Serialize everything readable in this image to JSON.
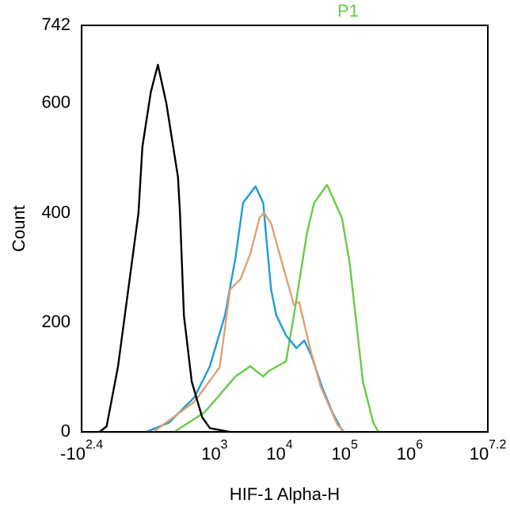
{
  "chart_data": {
    "type": "line",
    "title": "P1",
    "xlabel": "HIF-1 Alpha-H",
    "ylabel": "Count",
    "legend": false,
    "grid": false,
    "marker": "none",
    "line_style": "solid",
    "log": "x",
    "xlim": [
      9.1,
      15850000
    ],
    "xticks": [
      {
        "value": 9.1,
        "label": "-10$^{2.4}$"
      },
      {
        "value": 1000,
        "label": "10$^{3}$"
      },
      {
        "value": 10000,
        "label": "10$^{4}$"
      },
      {
        "value": 100000,
        "label": "10$^{5}$"
      },
      {
        "value": 1000000,
        "label": "10$^{6}$"
      },
      {
        "value": 15850000,
        "label": "10$^{7.2}$"
      }
    ],
    "ylim": [
      0,
      742
    ],
    "yticks": [
      0,
      200,
      400,
      600,
      742
    ],
    "series": [
      {
        "color": "#000000",
        "x": [
          17,
          22,
          33,
          68,
          78,
          105,
          135,
          182,
          275,
          295,
          339,
          447,
          646,
          851,
          1738
        ],
        "values": [
          0,
          10,
          120,
          400,
          520,
          620,
          670,
          600,
          465,
          400,
          213,
          92,
          27,
          7,
          0
        ]
      },
      {
        "color": "#e0a070",
        "x": [
          115,
          490,
          1200,
          1740,
          2510,
          3550,
          4900,
          5750,
          7410,
          10500,
          16600,
          20000,
          28800,
          42700,
          77600,
          100000
        ],
        "values": [
          0,
          55,
          118,
          260,
          279,
          325,
          390,
          400,
          381,
          316,
          232,
          237,
          157,
          83,
          13,
          0
        ]
      },
      {
        "color": "#1f9ad6",
        "x": [
          89,
          200,
          490,
          851,
          1450,
          2090,
          2750,
          4270,
          5620,
          6170,
          7410,
          8910,
          12600,
          18200,
          24000,
          30900,
          44700,
          64600,
          91200
        ],
        "values": [
          0,
          17,
          63,
          120,
          213,
          316,
          418,
          448,
          418,
          362,
          260,
          213,
          176,
          153,
          167,
          139,
          83,
          36,
          3
        ]
      },
      {
        "color": "#66cc44",
        "x": [
          240,
          708,
          2090,
          3550,
          5620,
          6760,
          12600,
          16600,
          26300,
          33900,
          53700,
          91200,
          120000,
          191000,
          275000,
          331000
        ],
        "values": [
          0,
          36,
          101,
          120,
          101,
          111,
          129,
          213,
          362,
          418,
          451,
          390,
          306,
          92,
          17,
          0
        ]
      }
    ]
  }
}
